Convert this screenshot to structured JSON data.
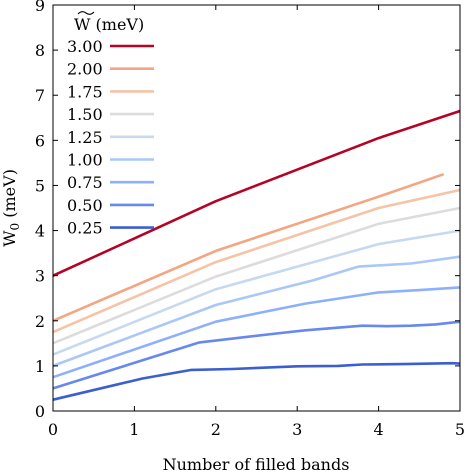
{
  "chart_data": {
    "type": "line",
    "xlabel": "Number of filled bands",
    "ylabel_main": "W",
    "ylabel_sub": "0",
    "ylabel_unit": " (meV)",
    "legend_title_symbol": "W",
    "legend_title_unit": " (meV)",
    "legend_placement": "top-left",
    "xlim": [
      0,
      5
    ],
    "ylim": [
      0,
      9
    ],
    "xticks": [
      "0",
      "1",
      "2",
      "3",
      "4",
      "5"
    ],
    "yticks": [
      "0",
      "1",
      "2",
      "3",
      "4",
      "5",
      "6",
      "7",
      "8",
      "9"
    ],
    "grid": false,
    "series": [
      {
        "name": "3.00",
        "color": "#b40426",
        "points": [
          [
            0,
            3.0
          ],
          [
            2,
            4.65
          ],
          [
            4,
            6.05
          ],
          [
            5,
            6.65
          ]
        ]
      },
      {
        "name": "2.00",
        "color": "#f4a582",
        "points": [
          [
            0,
            2.0
          ],
          [
            2,
            3.55
          ],
          [
            4,
            4.75
          ],
          [
            4.8,
            5.25
          ]
        ]
      },
      {
        "name": "1.75",
        "color": "#f6c3a7",
        "points": [
          [
            0,
            1.75
          ],
          [
            2,
            3.3
          ],
          [
            4,
            4.5
          ],
          [
            5,
            4.9
          ]
        ]
      },
      {
        "name": "1.50",
        "color": "#dcdcdc",
        "points": [
          [
            0,
            1.5
          ],
          [
            2,
            2.98
          ],
          [
            4,
            4.15
          ],
          [
            5,
            4.5
          ]
        ]
      },
      {
        "name": "1.25",
        "color": "#c6d9f1",
        "points": [
          [
            0,
            1.25
          ],
          [
            2,
            2.7
          ],
          [
            4,
            3.7
          ],
          [
            5,
            4.0
          ]
        ]
      },
      {
        "name": "1.00",
        "color": "#aac7f8",
        "points": [
          [
            0,
            1.0
          ],
          [
            2,
            2.35
          ],
          [
            3.2,
            2.9
          ],
          [
            3.75,
            3.2
          ],
          [
            4.4,
            3.27
          ],
          [
            5,
            3.42
          ]
        ]
      },
      {
        "name": "0.75",
        "color": "#8db0fe",
        "points": [
          [
            0,
            0.75
          ],
          [
            2,
            1.98
          ],
          [
            3.1,
            2.38
          ],
          [
            4,
            2.63
          ],
          [
            4.5,
            2.68
          ],
          [
            5,
            2.74
          ]
        ]
      },
      {
        "name": "0.50",
        "color": "#6788ee",
        "points": [
          [
            0,
            0.5
          ],
          [
            1.8,
            1.52
          ],
          [
            2.8,
            1.73
          ],
          [
            3.1,
            1.79
          ],
          [
            3.8,
            1.89
          ],
          [
            4.1,
            1.88
          ],
          [
            4.4,
            1.89
          ],
          [
            4.7,
            1.92
          ],
          [
            5,
            1.98
          ]
        ]
      },
      {
        "name": "0.25",
        "color": "#3b5fcf",
        "points": [
          [
            0,
            0.25
          ],
          [
            0.7,
            0.55
          ],
          [
            1.1,
            0.72
          ],
          [
            1.7,
            0.91
          ],
          [
            2.2,
            0.93
          ],
          [
            3,
            0.99
          ],
          [
            3.5,
            1.0
          ],
          [
            3.8,
            1.03
          ],
          [
            4.3,
            1.04
          ],
          [
            4.9,
            1.06
          ],
          [
            5,
            1.05
          ]
        ]
      }
    ]
  }
}
